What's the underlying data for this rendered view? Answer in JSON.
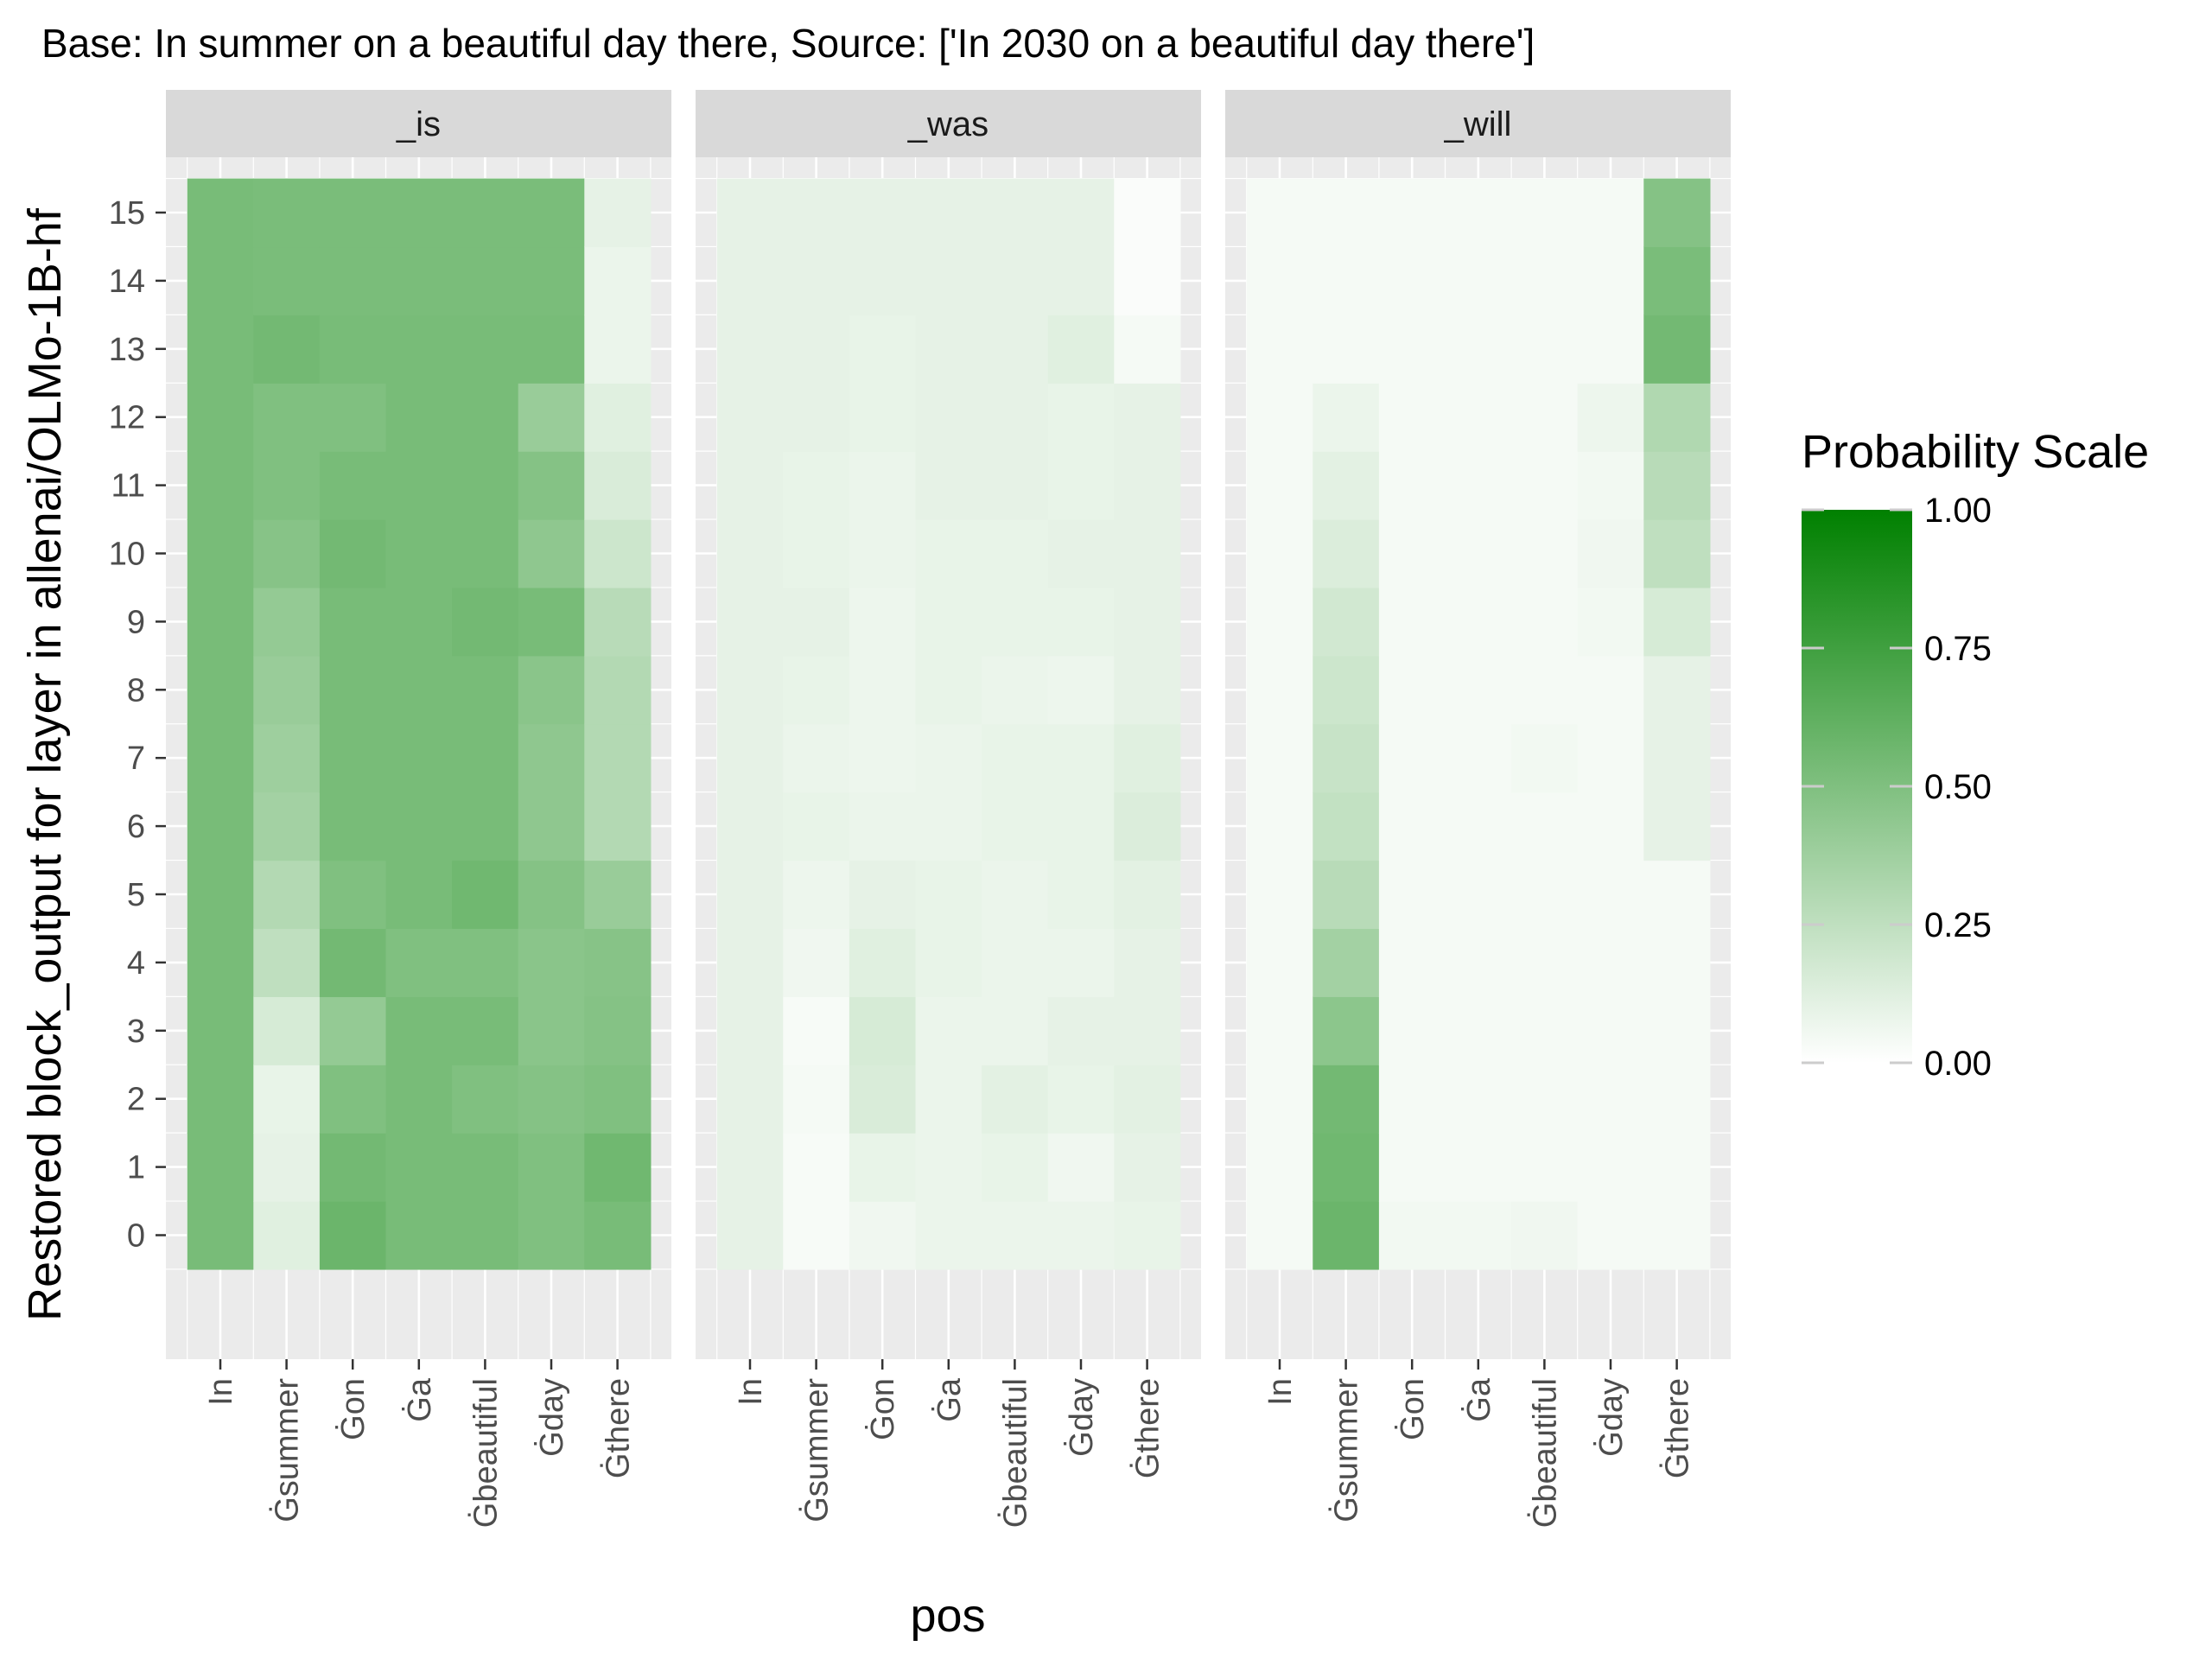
{
  "chart_data": {
    "type": "heatmap",
    "title": "Base: In summer on a beautiful day there, Source: ['In 2030 on a beautiful day there']",
    "xlabel": "pos",
    "ylabel": "Restored block_output for layer in allenai/OLMo-1B-hf",
    "x_categories": [
      "In",
      "ĠGsummer",
      "ĠGon",
      "ĠGa",
      "ĠGbeautiful",
      "ĠGday",
      "ĠGthere"
    ],
    "x_tick_labels": [
      "In",
      "Ġsummer",
      "Ġon",
      "Ġa",
      "Ġbeautiful",
      "Ġday",
      "Ġthere"
    ],
    "y_categories": [
      0,
      1,
      2,
      3,
      4,
      5,
      6,
      7,
      8,
      9,
      10,
      11,
      12,
      13,
      14,
      15
    ],
    "facets": [
      {
        "name": "_is",
        "values": [
          [
            0.53,
            0.53,
            0.53,
            0.53,
            0.53,
            0.53,
            0.53,
            0.53,
            0.53,
            0.53,
            0.53,
            0.53,
            0.53,
            0.53,
            0.53,
            0.53
          ],
          [
            0.12,
            0.1,
            0.09,
            0.16,
            0.25,
            0.3,
            0.36,
            0.38,
            0.4,
            0.42,
            0.47,
            0.5,
            0.5,
            0.55,
            0.52,
            0.52
          ],
          [
            0.58,
            0.55,
            0.5,
            0.42,
            0.55,
            0.5,
            0.53,
            0.53,
            0.53,
            0.53,
            0.55,
            0.53,
            0.5,
            0.53,
            0.52,
            0.52
          ],
          [
            0.53,
            0.53,
            0.53,
            0.53,
            0.5,
            0.53,
            0.53,
            0.53,
            0.53,
            0.53,
            0.53,
            0.53,
            0.53,
            0.53,
            0.52,
            0.52
          ],
          [
            0.53,
            0.53,
            0.5,
            0.53,
            0.5,
            0.56,
            0.53,
            0.53,
            0.53,
            0.55,
            0.53,
            0.53,
            0.53,
            0.53,
            0.52,
            0.52
          ],
          [
            0.5,
            0.5,
            0.48,
            0.46,
            0.46,
            0.48,
            0.44,
            0.44,
            0.46,
            0.53,
            0.44,
            0.48,
            0.4,
            0.53,
            0.52,
            0.52
          ],
          [
            0.53,
            0.56,
            0.5,
            0.48,
            0.47,
            0.4,
            0.3,
            0.3,
            0.3,
            0.28,
            0.2,
            0.15,
            0.12,
            0.08,
            0.08,
            0.1
          ]
        ]
      },
      {
        "name": "_was",
        "values": [
          [
            0.1,
            0.1,
            0.1,
            0.1,
            0.1,
            0.1,
            0.1,
            0.1,
            0.1,
            0.1,
            0.1,
            0.1,
            0.1,
            0.1,
            0.1,
            0.1
          ],
          [
            0.03,
            0.03,
            0.04,
            0.03,
            0.06,
            0.07,
            0.09,
            0.08,
            0.09,
            0.1,
            0.09,
            0.09,
            0.1,
            0.1,
            0.1,
            0.1
          ],
          [
            0.06,
            0.09,
            0.15,
            0.16,
            0.12,
            0.1,
            0.08,
            0.07,
            0.07,
            0.07,
            0.08,
            0.08,
            0.09,
            0.09,
            0.1,
            0.1
          ],
          [
            0.08,
            0.08,
            0.08,
            0.08,
            0.09,
            0.09,
            0.08,
            0.08,
            0.09,
            0.09,
            0.09,
            0.1,
            0.1,
            0.1,
            0.1,
            0.1
          ],
          [
            0.08,
            0.09,
            0.11,
            0.08,
            0.08,
            0.08,
            0.09,
            0.09,
            0.08,
            0.09,
            0.09,
            0.1,
            0.1,
            0.1,
            0.1,
            0.1
          ],
          [
            0.08,
            0.06,
            0.09,
            0.1,
            0.08,
            0.09,
            0.09,
            0.09,
            0.07,
            0.09,
            0.1,
            0.09,
            0.09,
            0.12,
            0.1,
            0.1
          ],
          [
            0.09,
            0.1,
            0.11,
            0.1,
            0.1,
            0.11,
            0.14,
            0.12,
            0.1,
            0.1,
            0.1,
            0.1,
            0.1,
            0.04,
            0.02,
            0.02
          ]
        ]
      },
      {
        "name": "_will",
        "values": [
          [
            0.04,
            0.04,
            0.04,
            0.04,
            0.04,
            0.04,
            0.04,
            0.04,
            0.04,
            0.04,
            0.04,
            0.04,
            0.04,
            0.04,
            0.04,
            0.04
          ],
          [
            0.58,
            0.56,
            0.55,
            0.45,
            0.36,
            0.28,
            0.24,
            0.22,
            0.2,
            0.18,
            0.14,
            0.11,
            0.08,
            0.04,
            0.04,
            0.04
          ],
          [
            0.05,
            0.04,
            0.04,
            0.04,
            0.04,
            0.04,
            0.04,
            0.04,
            0.04,
            0.04,
            0.04,
            0.04,
            0.04,
            0.04,
            0.04,
            0.04
          ],
          [
            0.05,
            0.04,
            0.04,
            0.04,
            0.04,
            0.04,
            0.04,
            0.04,
            0.04,
            0.04,
            0.04,
            0.04,
            0.04,
            0.04,
            0.04,
            0.04
          ],
          [
            0.06,
            0.04,
            0.04,
            0.04,
            0.04,
            0.04,
            0.04,
            0.05,
            0.04,
            0.04,
            0.04,
            0.04,
            0.04,
            0.04,
            0.04,
            0.04
          ],
          [
            0.04,
            0.04,
            0.04,
            0.04,
            0.04,
            0.04,
            0.04,
            0.04,
            0.04,
            0.05,
            0.06,
            0.05,
            0.07,
            0.04,
            0.04,
            0.04
          ],
          [
            0.04,
            0.04,
            0.04,
            0.04,
            0.04,
            0.04,
            0.1,
            0.1,
            0.1,
            0.16,
            0.25,
            0.28,
            0.31,
            0.55,
            0.52,
            0.48
          ]
        ]
      }
    ],
    "legend": {
      "title": "Probability Scale",
      "breaks": [
        0.0,
        0.25,
        0.5,
        0.75,
        1.0
      ],
      "labels": [
        "0.00",
        "0.25",
        "0.50",
        "0.75",
        "1.00"
      ],
      "position": "right"
    },
    "color_low": "#ffffff",
    "color_high": "#008000",
    "panel_background": "#ebebeb",
    "strip_background": "#d9d9d9",
    "grid": true
  }
}
